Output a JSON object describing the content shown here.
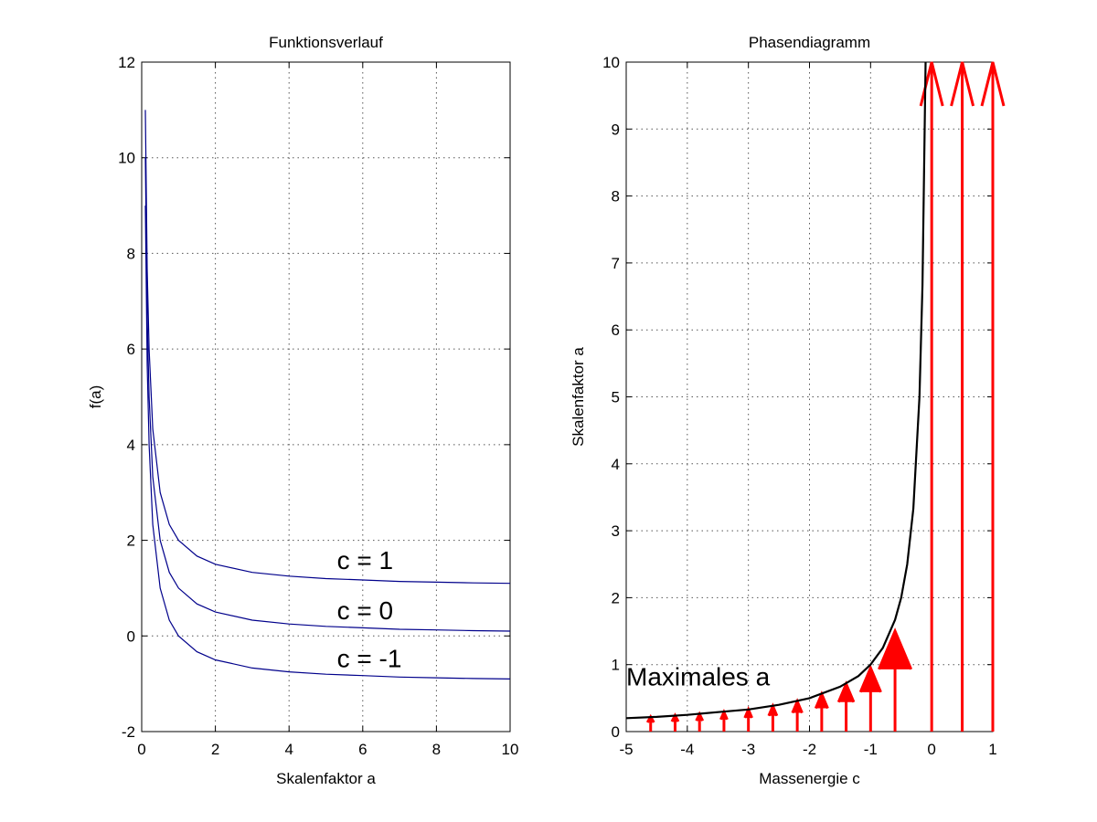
{
  "chart_data": [
    {
      "type": "line",
      "title": "Funktionsverlauf",
      "xlabel": "Skalenfaktor a",
      "ylabel": "f(a)",
      "xlim": [
        0,
        10
      ],
      "ylim": [
        -2,
        12
      ],
      "xticks": [
        "0",
        "2",
        "4",
        "6",
        "8",
        "10"
      ],
      "yticks": [
        "-2",
        "0",
        "2",
        "4",
        "6",
        "8",
        "10",
        "12"
      ],
      "grid": true,
      "line_color": "#00008b",
      "series": [
        {
          "c": 1,
          "x": [
            0.1,
            0.15,
            0.2,
            0.3,
            0.5,
            0.75,
            1,
            1.5,
            2,
            3,
            4,
            5,
            6,
            7,
            8,
            9,
            10
          ],
          "y": [
            11.0,
            7.67,
            6.0,
            4.33,
            3.0,
            2.33,
            2.0,
            1.67,
            1.5,
            1.33,
            1.25,
            1.2,
            1.17,
            1.14,
            1.125,
            1.11,
            1.1
          ]
        },
        {
          "c": 0,
          "x": [
            0.1,
            0.15,
            0.2,
            0.3,
            0.5,
            0.75,
            1,
            1.5,
            2,
            3,
            4,
            5,
            6,
            7,
            8,
            9,
            10
          ],
          "y": [
            10.0,
            6.67,
            5.0,
            3.33,
            2.0,
            1.33,
            1.0,
            0.67,
            0.5,
            0.33,
            0.25,
            0.2,
            0.17,
            0.14,
            0.125,
            0.11,
            0.1
          ]
        },
        {
          "c": -1,
          "x": [
            0.1,
            0.15,
            0.2,
            0.3,
            0.5,
            0.75,
            1,
            1.5,
            2,
            3,
            4,
            5,
            6,
            7,
            8,
            9,
            10
          ],
          "y": [
            9.0,
            5.67,
            4.0,
            2.33,
            1.0,
            0.33,
            0.0,
            -0.33,
            -0.5,
            -0.67,
            -0.75,
            -0.8,
            -0.83,
            -0.86,
            -0.875,
            -0.89,
            -0.9
          ]
        }
      ],
      "annotations": [
        {
          "text": "c = 1",
          "x": 5.3,
          "y": 1.4
        },
        {
          "text": "c = 0",
          "x": 5.3,
          "y": 0.35
        },
        {
          "text": "c = -1",
          "x": 5.3,
          "y": -0.65
        }
      ]
    },
    {
      "type": "line",
      "title": "Phasendiagramm",
      "xlabel": "Massenergie c",
      "ylabel": "Skalenfaktor a",
      "xlim": [
        -5,
        1
      ],
      "ylim": [
        0,
        10
      ],
      "xticks": [
        "-5",
        "-4",
        "-3",
        "-2",
        "-1",
        "0",
        "1"
      ],
      "yticks": [
        "0",
        "1",
        "2",
        "3",
        "4",
        "5",
        "6",
        "7",
        "8",
        "9",
        "10"
      ],
      "grid": true,
      "line_color": "#000000",
      "arrow_color": "#ff0000",
      "curve": {
        "x": [
          -5,
          -4.5,
          -4,
          -3.5,
          -3,
          -2.5,
          -2,
          -1.5,
          -1.2,
          -1,
          -0.8,
          -0.6,
          -0.5,
          -0.4,
          -0.3,
          -0.2,
          -0.15,
          -0.1
        ],
        "y": [
          0.2,
          0.22,
          0.25,
          0.29,
          0.33,
          0.4,
          0.5,
          0.67,
          0.83,
          1.0,
          1.25,
          1.67,
          2.0,
          2.5,
          3.33,
          5.0,
          6.67,
          10.0
        ]
      },
      "arrows": [
        {
          "x": -4.6,
          "y": 0.22
        },
        {
          "x": -4.2,
          "y": 0.24
        },
        {
          "x": -3.8,
          "y": 0.26
        },
        {
          "x": -3.4,
          "y": 0.29
        },
        {
          "x": -3.0,
          "y": 0.33
        },
        {
          "x": -2.6,
          "y": 0.38
        },
        {
          "x": -2.2,
          "y": 0.45
        },
        {
          "x": -1.8,
          "y": 0.56
        },
        {
          "x": -1.4,
          "y": 0.71
        },
        {
          "x": -1.0,
          "y": 0.95
        },
        {
          "x": -0.6,
          "y": 1.5
        },
        {
          "x": 0.0,
          "y": 10
        },
        {
          "x": 0.5,
          "y": 10
        },
        {
          "x": 1.0,
          "y": 10
        }
      ],
      "annotations": [
        {
          "text": "Maximales a",
          "x": -5,
          "y": 0.7
        }
      ]
    }
  ]
}
